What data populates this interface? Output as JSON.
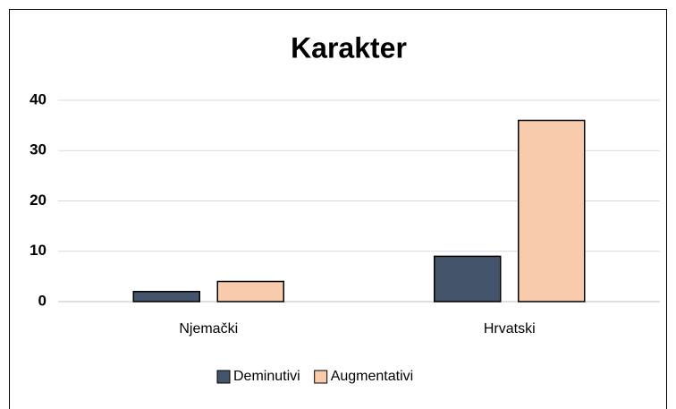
{
  "chart_data": {
    "type": "bar",
    "title": "Karakter",
    "categories": [
      "Njemački",
      "Hrvatski"
    ],
    "series": [
      {
        "name": "Deminutivi",
        "color": "#44546a",
        "values": [
          2,
          9
        ]
      },
      {
        "name": "Augmentativi",
        "color": "#f8cbad",
        "values": [
          4,
          36
        ]
      }
    ],
    "ylim": [
      0,
      40
    ],
    "yticks": [
      0,
      10,
      20,
      30,
      40
    ],
    "grid": true,
    "legend": "bottom"
  }
}
